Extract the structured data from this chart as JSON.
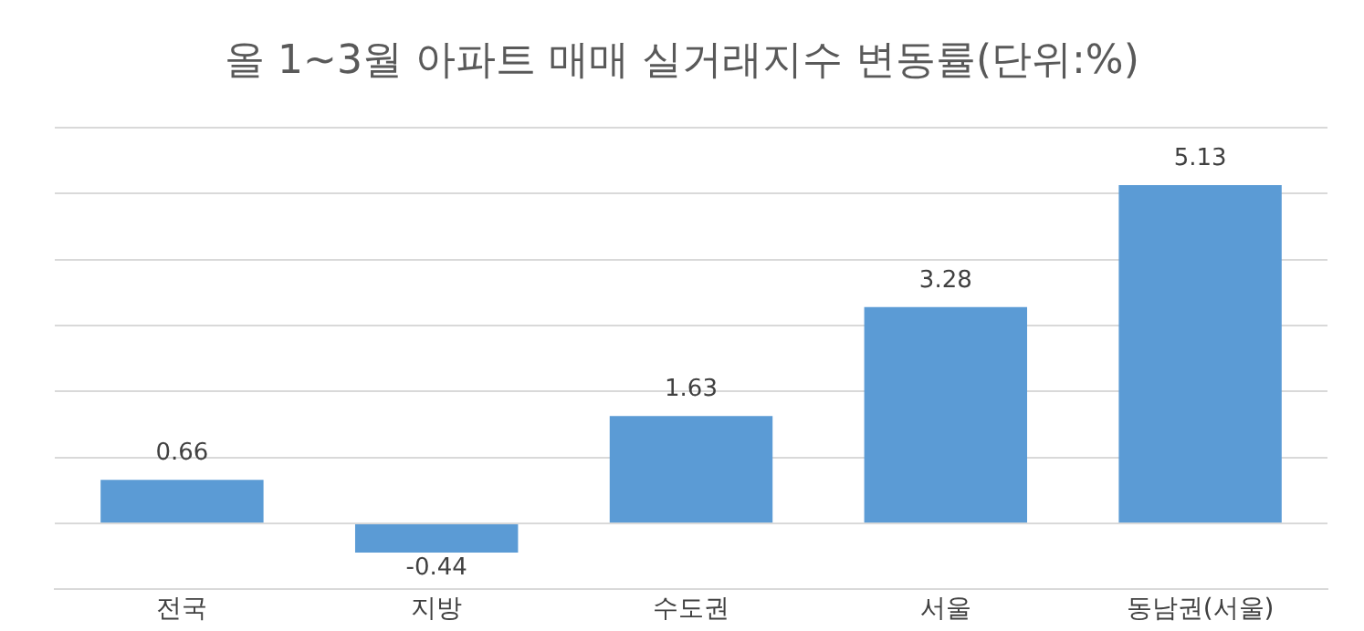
{
  "chart_data": {
    "type": "bar",
    "title": "올 1~3월 아파트 매매 실거래지수 변동률(단위:%)",
    "categories": [
      "전국",
      "지방",
      "수도권",
      "서울",
      "동남권(서울)"
    ],
    "values": [
      0.66,
      -0.44,
      1.63,
      3.28,
      5.13
    ],
    "color": "#5b9bd5",
    "ylim": [
      -1,
      6
    ],
    "yticks": [
      {
        "value": 0,
        "label": null
      },
      {
        "value": 1,
        "label": null
      },
      {
        "value": 2,
        "label": null
      },
      {
        "value": 3,
        "label": null
      },
      {
        "value": 4,
        "label": null
      },
      {
        "value": 5,
        "label": null
      },
      {
        "value": 6,
        "label": null
      }
    ],
    "grid": "y",
    "tick_labels": "x",
    "data_labels": true
  }
}
